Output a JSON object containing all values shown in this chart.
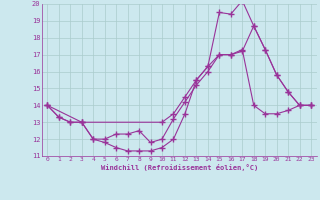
{
  "xlabel": "Windchill (Refroidissement éolien,°C)",
  "bg_color": "#cce8ee",
  "line_color": "#993399",
  "grid_color": "#aacccc",
  "ylim": [
    11,
    20
  ],
  "xlim": [
    -0.5,
    23.5
  ],
  "yticks": [
    11,
    12,
    13,
    14,
    15,
    16,
    17,
    18,
    19,
    20
  ],
  "xticks": [
    0,
    1,
    2,
    3,
    4,
    5,
    6,
    7,
    8,
    9,
    10,
    11,
    12,
    13,
    14,
    15,
    16,
    17,
    18,
    19,
    20,
    21,
    22,
    23
  ],
  "line1_x": [
    0,
    1,
    2,
    3,
    4,
    5,
    6,
    7,
    8,
    9,
    10,
    11,
    12,
    13,
    14,
    15,
    16,
    17,
    18,
    19,
    20,
    21,
    22,
    23
  ],
  "line1_y": [
    14,
    13.3,
    13.0,
    13.0,
    12.0,
    11.8,
    11.5,
    11.3,
    11.3,
    11.3,
    11.5,
    12.0,
    13.5,
    15.5,
    16.3,
    19.5,
    19.4,
    20.2,
    18.7,
    17.3,
    15.8,
    14.8,
    14.0,
    14.0
  ],
  "line2_x": [
    0,
    3,
    10,
    11,
    12,
    13,
    14,
    15,
    16,
    17,
    18,
    19,
    20,
    21,
    22,
    23
  ],
  "line2_y": [
    14,
    13.0,
    13.0,
    13.5,
    14.5,
    15.5,
    16.3,
    17.0,
    17.0,
    17.2,
    18.7,
    17.3,
    15.8,
    14.8,
    14.0,
    14.0
  ],
  "line3_x": [
    0,
    1,
    2,
    3,
    4,
    5,
    6,
    7,
    8,
    9,
    10,
    11,
    12,
    13,
    14,
    15,
    16,
    17,
    18,
    19,
    20,
    21,
    22,
    23
  ],
  "line3_y": [
    14,
    13.3,
    13.0,
    13.0,
    12.0,
    12.0,
    12.3,
    12.3,
    12.5,
    11.8,
    12.0,
    13.2,
    14.2,
    15.2,
    16.0,
    17.0,
    17.0,
    17.3,
    14.0,
    13.5,
    13.5,
    13.7,
    14.0,
    14.0
  ]
}
